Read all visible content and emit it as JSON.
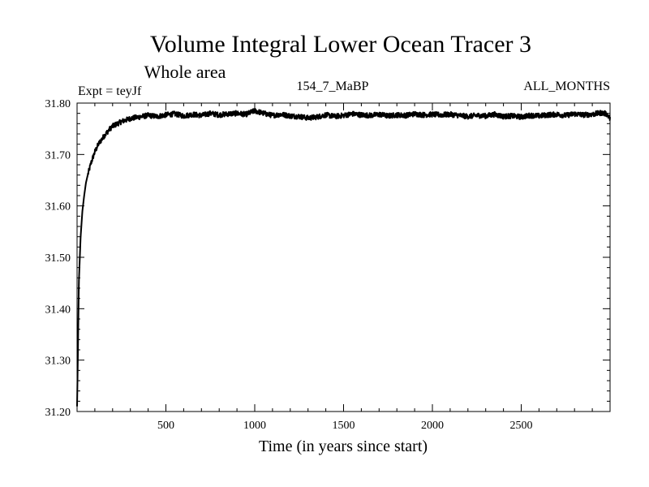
{
  "chart_data": {
    "type": "line",
    "title": "Volume Integral Lower Ocean Tracer 3",
    "subtitle": "Whole area",
    "annotations": {
      "expt": "Expt = teyJf",
      "run": "154_7_MaBP",
      "months": "ALL_MONTHS"
    },
    "xlabel": "Time (in years since start)",
    "ylabel": "",
    "xlim": [
      0,
      3000
    ],
    "ylim": [
      31.2,
      31.8
    ],
    "x_ticks": [
      500,
      1000,
      1500,
      2000,
      2500
    ],
    "x_tick_labels": [
      "500",
      "1000",
      "1500",
      "2000",
      "2500"
    ],
    "y_ticks": [
      31.2,
      31.3,
      31.4,
      31.5,
      31.6,
      31.7,
      31.8
    ],
    "y_tick_labels": [
      "31.20",
      "31.30",
      "31.40",
      "31.50",
      "31.60",
      "31.70",
      "31.80"
    ],
    "grid": false,
    "series": [
      {
        "name": "Volume Integral Lower Ocean Tracer 3",
        "x": [
          0,
          5,
          10,
          20,
          30,
          40,
          50,
          60,
          80,
          100,
          120,
          150,
          180,
          200,
          250,
          300,
          350,
          400,
          450,
          500,
          550,
          600,
          650,
          700,
          750,
          800,
          850,
          900,
          950,
          1000,
          1050,
          1100,
          1150,
          1200,
          1250,
          1300,
          1350,
          1400,
          1450,
          1500,
          1550,
          1600,
          1650,
          1700,
          1750,
          1800,
          1850,
          1900,
          1950,
          2000,
          2050,
          2100,
          2150,
          2200,
          2250,
          2300,
          2350,
          2400,
          2450,
          2500,
          2550,
          2600,
          2650,
          2700,
          2750,
          2800,
          2850,
          2900,
          2950,
          2980,
          3000
        ],
        "y": [
          31.21,
          31.32,
          31.45,
          31.54,
          31.59,
          31.62,
          31.645,
          31.66,
          31.685,
          31.705,
          31.72,
          31.735,
          31.748,
          31.755,
          31.764,
          31.77,
          31.773,
          31.776,
          31.774,
          31.777,
          31.779,
          31.775,
          31.778,
          31.776,
          31.78,
          31.777,
          31.779,
          31.78,
          31.778,
          31.785,
          31.78,
          31.776,
          31.778,
          31.775,
          31.774,
          31.771,
          31.773,
          31.777,
          31.774,
          31.776,
          31.779,
          31.777,
          31.776,
          31.778,
          31.775,
          31.777,
          31.776,
          31.779,
          31.777,
          31.778,
          31.777,
          31.778,
          31.776,
          31.774,
          31.776,
          31.775,
          31.778,
          31.774,
          31.775,
          31.773,
          31.776,
          31.775,
          31.777,
          31.778,
          31.776,
          31.779,
          31.777,
          31.778,
          31.781,
          31.779,
          31.77
        ],
        "color": "#000000"
      }
    ]
  }
}
